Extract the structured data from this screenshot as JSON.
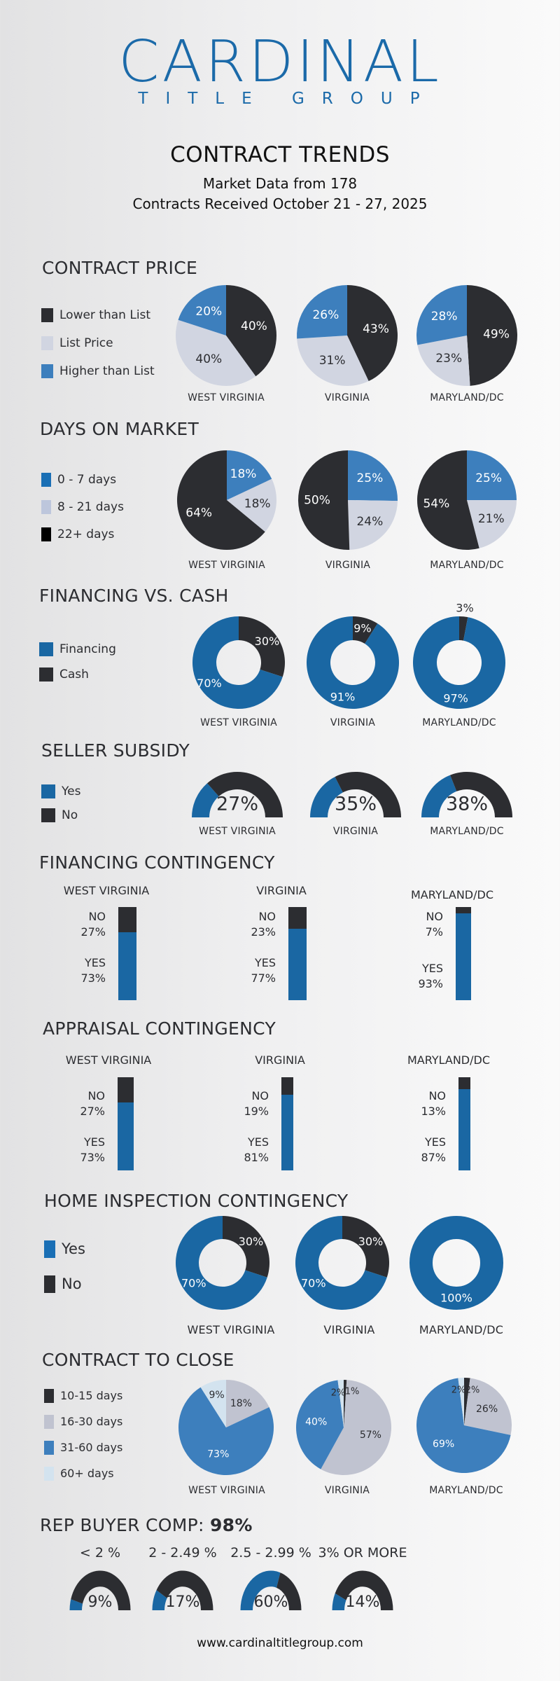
{
  "colors": {
    "dark": "#2c2d31",
    "light_gray": "#d1d5e1",
    "mid_blue": "#3d7fbd",
    "deep_blue": "#1a67a3",
    "gray_blue": "#c0c3d0",
    "pale_blue": "#d3e3ef",
    "brand": "#1b6aa9"
  },
  "header": {
    "logo_word": "CARDINAL",
    "logo_sub": "TITLE GROUP",
    "title": "CONTRACT TRENDS",
    "subtitle_line1": "Market Data from 178",
    "subtitle_line2": "Contracts Received October 21 - 27, 2025"
  },
  "regions": [
    "WEST VIRGINIA",
    "VIRGINIA",
    "MARYLAND/DC"
  ],
  "sections": {
    "contract_price": {
      "title": "CONTRACT PRICE",
      "legend": [
        {
          "label": "Lower than List",
          "color": "#2c2d31"
        },
        {
          "label": "List Price",
          "color": "#d1d5e1"
        },
        {
          "label": "Higher than List",
          "color": "#3d7fbd"
        }
      ]
    },
    "days_on_market": {
      "title": "DAYS ON MARKET",
      "legend": [
        {
          "label": "0 - 7 days",
          "color": "#1a6fb5"
        },
        {
          "label": "8 - 21 days",
          "color": "#bdc6dc"
        },
        {
          "label": "22+ days",
          "color": "#000000"
        }
      ]
    },
    "financing_vs_cash": {
      "title": "FINANCING VS. CASH",
      "legend": [
        {
          "label": "Financing",
          "color": "#1a67a3"
        },
        {
          "label": "Cash",
          "color": "#2c2d31"
        }
      ]
    },
    "seller_subsidy": {
      "title": "SELLER SUBSIDY",
      "legend": [
        {
          "label": "Yes",
          "color": "#1a67a3"
        },
        {
          "label": "No",
          "color": "#2c2d31"
        }
      ]
    },
    "financing_contingency": {
      "title": "FINANCING CONTINGENCY",
      "no_label": "NO",
      "yes_label": "YES"
    },
    "appraisal_contingency": {
      "title": "APPRAISAL CONTINGENCY",
      "no_label": "NO",
      "yes_label": "YES"
    },
    "home_inspection": {
      "title": "HOME INSPECTION CONTINGENCY",
      "legend": [
        {
          "label": "Yes",
          "color": "#1a6fb5"
        },
        {
          "label": "No",
          "color": "#2c2d31"
        }
      ]
    },
    "contract_to_close": {
      "title": "CONTRACT TO CLOSE",
      "legend": [
        {
          "label": "10-15 days",
          "color": "#2c2d31"
        },
        {
          "label": "16-30 days",
          "color": "#c0c3d0"
        },
        {
          "label": "31-60 days",
          "color": "#3d7fbd"
        },
        {
          "label": "60+ days",
          "color": "#d3e3ef"
        }
      ]
    },
    "rep_buyer_comp": {
      "title_prefix": "REP BUYER COMP: ",
      "title_value": "98%"
    }
  },
  "footer": {
    "url": "www.cardinaltitlegroup.com"
  },
  "chart_data": [
    {
      "id": "contract_price",
      "type": "pie",
      "title": "CONTRACT PRICE",
      "categories": [
        "Lower than List",
        "List Price",
        "Higher than List"
      ],
      "series": [
        {
          "name": "WEST VIRGINIA",
          "values": [
            40,
            40,
            20
          ]
        },
        {
          "name": "VIRGINIA",
          "values": [
            43,
            31,
            26
          ]
        },
        {
          "name": "MARYLAND/DC",
          "values": [
            49,
            23,
            28
          ]
        }
      ]
    },
    {
      "id": "days_on_market",
      "type": "pie",
      "title": "DAYS ON MARKET",
      "categories": [
        "0 - 7 days",
        "8 - 21 days",
        "22+ days"
      ],
      "series": [
        {
          "name": "WEST VIRGINIA",
          "values": [
            18,
            18,
            64
          ]
        },
        {
          "name": "VIRGINIA",
          "values": [
            25,
            24,
            50
          ]
        },
        {
          "name": "MARYLAND/DC",
          "values": [
            25,
            21,
            54
          ]
        }
      ]
    },
    {
      "id": "financing_vs_cash",
      "type": "pie",
      "subtype": "donut",
      "title": "FINANCING VS. CASH",
      "categories": [
        "Cash",
        "Financing"
      ],
      "series": [
        {
          "name": "WEST VIRGINIA",
          "values": [
            30,
            70
          ]
        },
        {
          "name": "VIRGINIA",
          "values": [
            9,
            91
          ]
        },
        {
          "name": "MARYLAND/DC",
          "values": [
            3,
            97
          ]
        }
      ]
    },
    {
      "id": "seller_subsidy",
      "type": "pie",
      "subtype": "half-donut",
      "title": "SELLER SUBSIDY",
      "categories": [
        "Yes",
        "No"
      ],
      "series": [
        {
          "name": "WEST VIRGINIA",
          "values": [
            27,
            73
          ]
        },
        {
          "name": "VIRGINIA",
          "values": [
            35,
            65
          ]
        },
        {
          "name": "MARYLAND/DC",
          "values": [
            38,
            62
          ]
        }
      ]
    },
    {
      "id": "financing_contingency",
      "type": "bar",
      "subtype": "stacked-100",
      "title": "FINANCING CONTINGENCY",
      "categories": [
        "NO",
        "YES"
      ],
      "series": [
        {
          "name": "WEST VIRGINIA",
          "values": [
            27,
            73
          ]
        },
        {
          "name": "VIRGINIA",
          "values": [
            23,
            77
          ]
        },
        {
          "name": "MARYLAND/DC",
          "values": [
            7,
            93
          ]
        }
      ]
    },
    {
      "id": "appraisal_contingency",
      "type": "bar",
      "subtype": "stacked-100",
      "title": "APPRAISAL CONTINGENCY",
      "categories": [
        "NO",
        "YES"
      ],
      "series": [
        {
          "name": "WEST VIRGINIA",
          "values": [
            27,
            73
          ]
        },
        {
          "name": "VIRGINIA",
          "values": [
            19,
            81
          ]
        },
        {
          "name": "MARYLAND/DC",
          "values": [
            13,
            87
          ]
        }
      ]
    },
    {
      "id": "home_inspection",
      "type": "pie",
      "subtype": "donut",
      "title": "HOME INSPECTION CONTINGENCY",
      "categories": [
        "No",
        "Yes"
      ],
      "series": [
        {
          "name": "WEST VIRGINIA",
          "values": [
            30,
            70
          ]
        },
        {
          "name": "VIRGINIA",
          "values": [
            30,
            70
          ]
        },
        {
          "name": "MARYLAND/DC",
          "values": [
            0,
            100
          ]
        }
      ]
    },
    {
      "id": "contract_to_close",
      "type": "pie",
      "title": "CONTRACT TO CLOSE",
      "categories": [
        "10-15 days",
        "16-30 days",
        "31-60 days",
        "60+ days"
      ],
      "series": [
        {
          "name": "WEST VIRGINIA",
          "values": [
            0,
            18,
            73,
            9
          ]
        },
        {
          "name": "VIRGINIA",
          "values": [
            1,
            57,
            40,
            2
          ]
        },
        {
          "name": "MARYLAND/DC",
          "values": [
            2,
            26,
            69,
            2
          ]
        }
      ]
    },
    {
      "id": "rep_buyer_comp",
      "type": "pie",
      "subtype": "half-donut",
      "title": "REP BUYER COMP: 98%",
      "categories": [
        "< 2 %",
        "2 - 2.49 %",
        "2.5 - 2.99 %",
        "3% OR MORE"
      ],
      "values": [
        9,
        17,
        60,
        14
      ]
    }
  ]
}
